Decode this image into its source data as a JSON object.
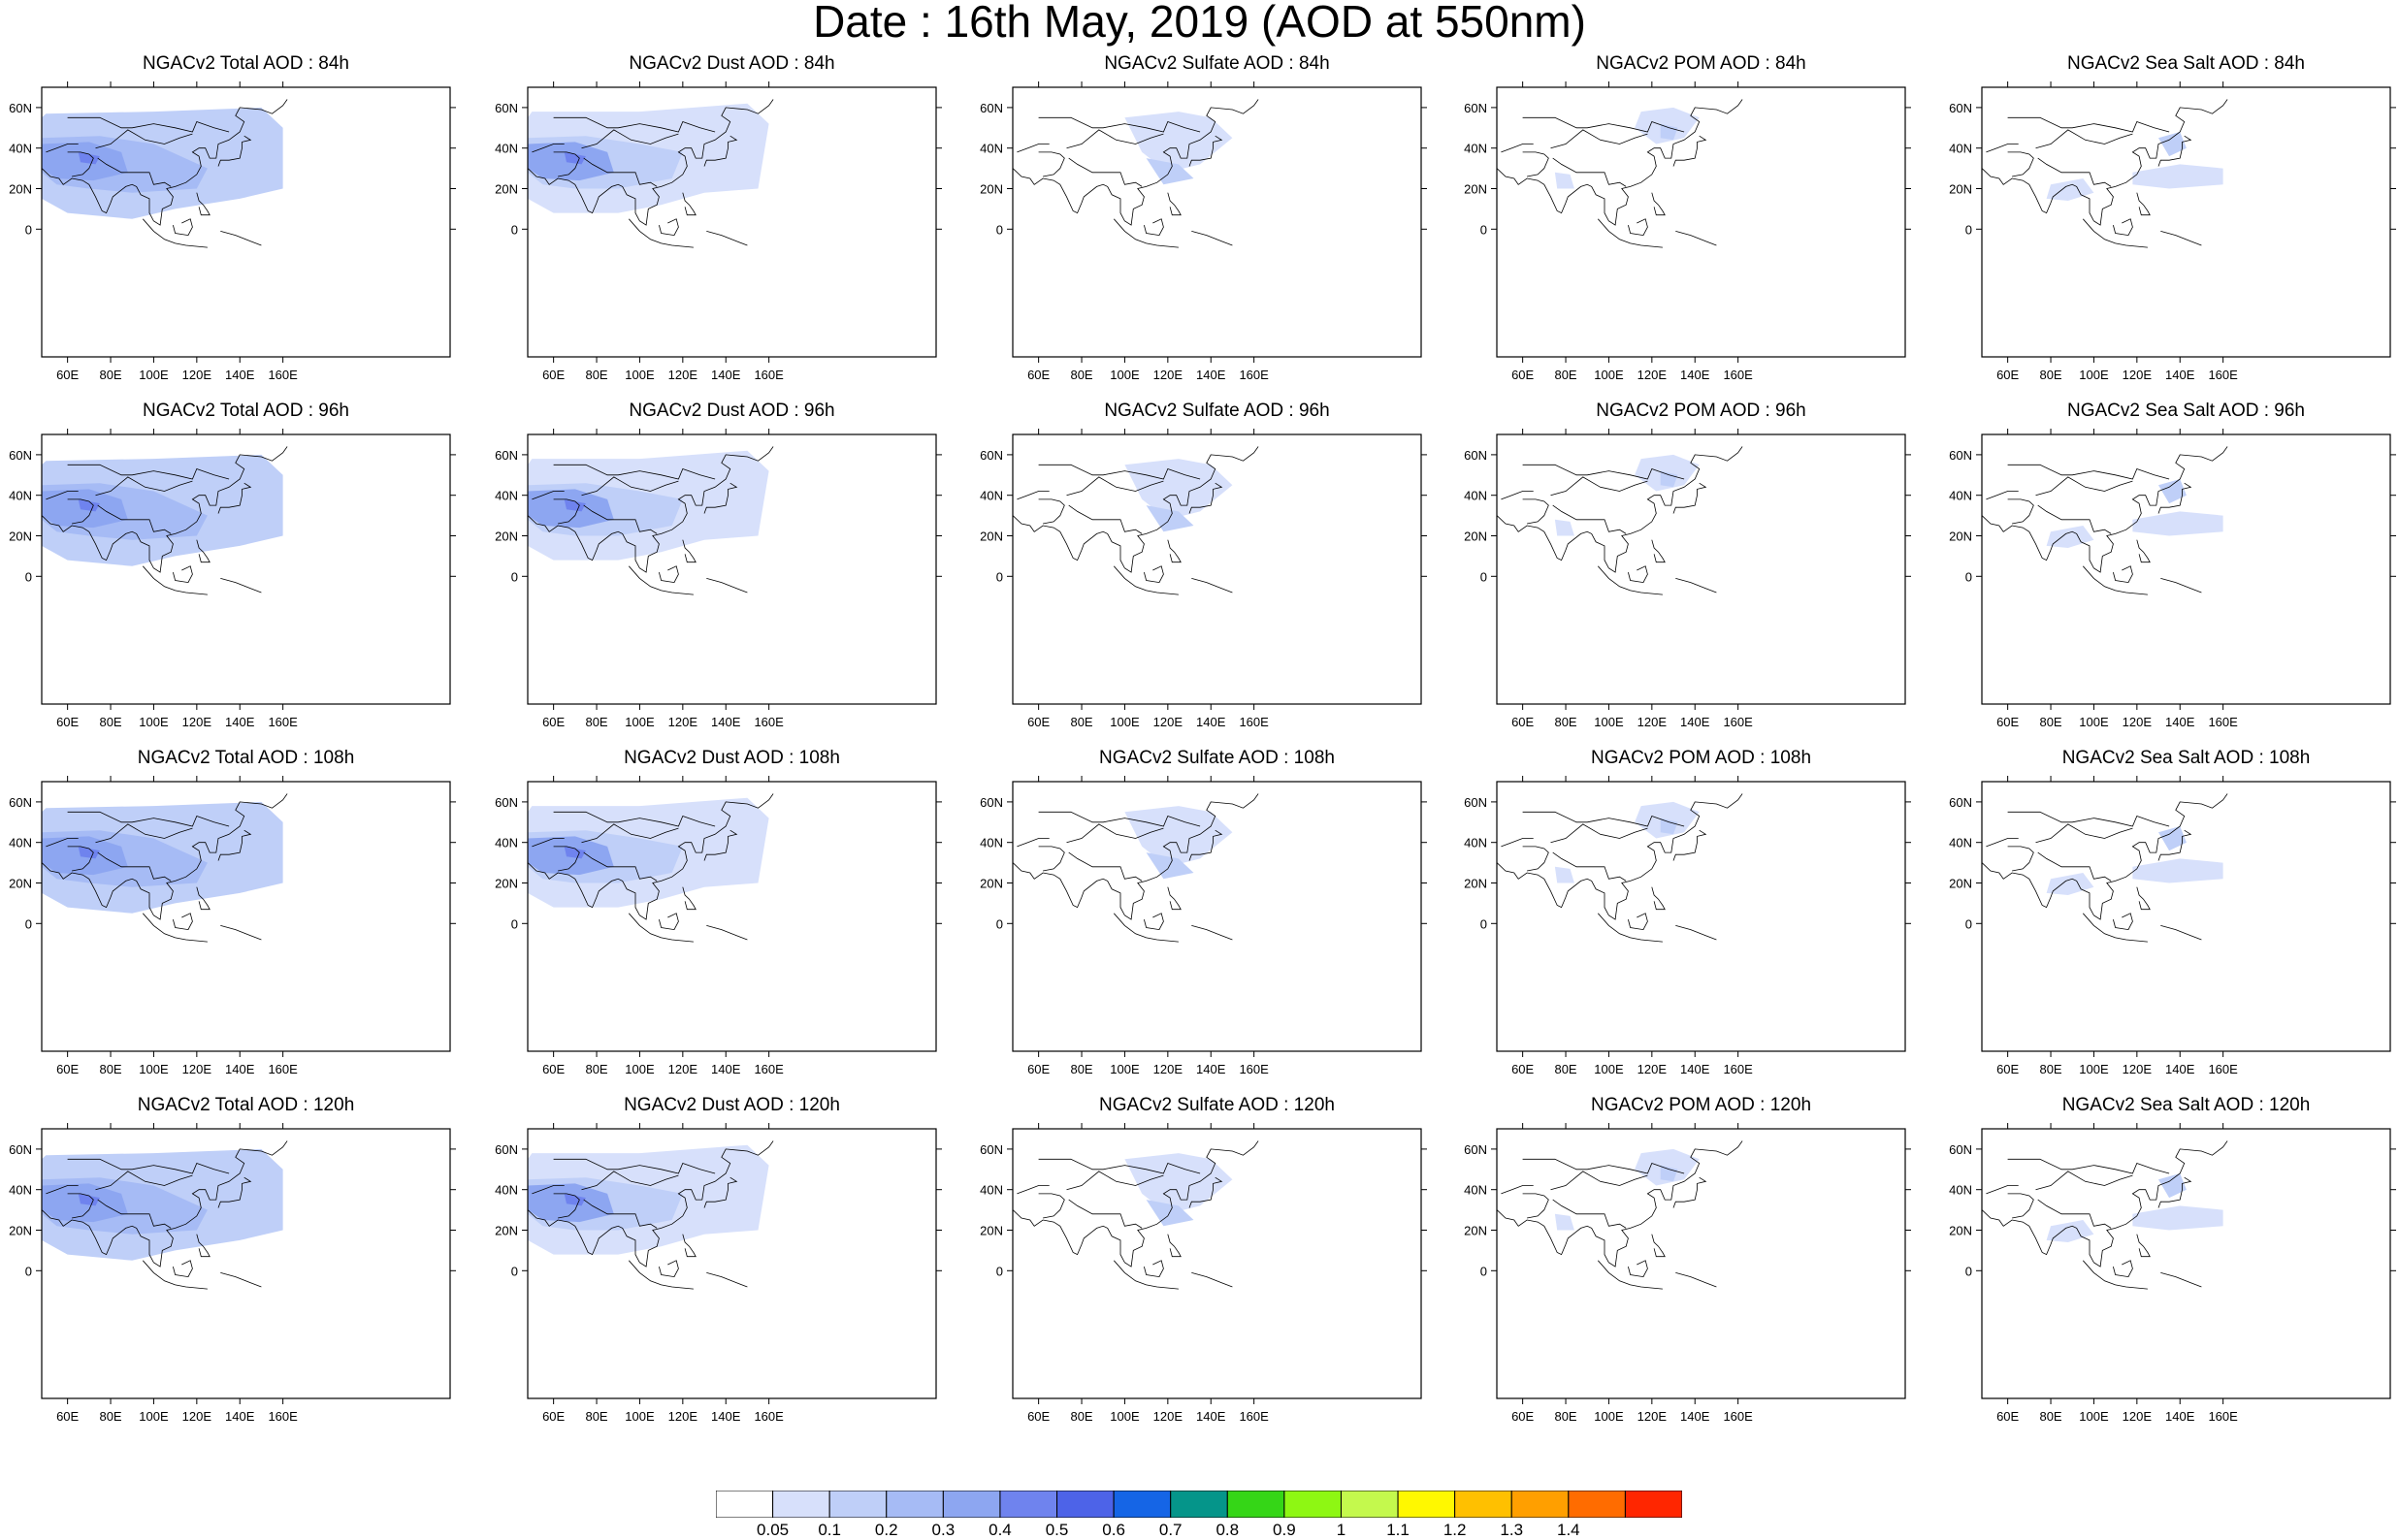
{
  "title": "Date : 16th May, 2019 (AOD at 550nm)",
  "lat_labels": [
    "60N",
    "40N",
    "20N",
    "0"
  ],
  "lon_labels": [
    "60E",
    "80E",
    "100E",
    "120E",
    "140E",
    "160E"
  ],
  "rows": [
    {
      "panels": [
        {
          "title": "NGACv2 Total AOD : 84h",
          "type": "total"
        },
        {
          "title": "NGACv2 Dust AOD : 84h",
          "type": "dust"
        },
        {
          "title": "NGACv2 Sulfate AOD : 84h",
          "type": "sulfate"
        },
        {
          "title": "NGACv2 POM AOD : 84h",
          "type": "pom"
        },
        {
          "title": "NGACv2 Sea Salt AOD : 84h",
          "type": "seasalt"
        }
      ]
    },
    {
      "panels": [
        {
          "title": "NGACv2 Total AOD : 96h",
          "type": "total"
        },
        {
          "title": "NGACv2 Dust AOD : 96h",
          "type": "dust"
        },
        {
          "title": "NGACv2 Sulfate AOD : 96h",
          "type": "sulfate"
        },
        {
          "title": "NGACv2 POM AOD : 96h",
          "type": "pom"
        },
        {
          "title": "NGACv2 Sea Salt AOD : 96h",
          "type": "seasalt"
        }
      ]
    },
    {
      "panels": [
        {
          "title": "NGACv2 Total AOD : 108h",
          "type": "total"
        },
        {
          "title": "NGACv2 Dust AOD : 108h",
          "type": "dust"
        },
        {
          "title": "NGACv2 Sulfate AOD : 108h",
          "type": "sulfate"
        },
        {
          "title": "NGACv2 POM AOD : 108h",
          "type": "pom"
        },
        {
          "title": "NGACv2 Sea Salt AOD : 108h",
          "type": "seasalt"
        }
      ]
    },
    {
      "panels": [
        {
          "title": "NGACv2 Total AOD : 120h",
          "type": "total"
        },
        {
          "title": "NGACv2 Dust AOD : 120h",
          "type": "dust"
        },
        {
          "title": "NGACv2 Sulfate AOD : 120h",
          "type": "sulfate"
        },
        {
          "title": "NGACv2 POM AOD : 120h",
          "type": "pom"
        },
        {
          "title": "NGACv2 Sea Salt  AOD : 120h",
          "type": "seasalt"
        }
      ]
    }
  ],
  "colorbar": {
    "labels": [
      "0.05",
      "0.1",
      "0.2",
      "0.3",
      "0.4",
      "0.5",
      "0.6",
      "0.7",
      "0.8",
      "0.9",
      "1",
      "1.1",
      "1.2",
      "1.3",
      "1.4"
    ],
    "colors": [
      "#ffffff",
      "#d7e0fb",
      "#bfcff8",
      "#a6bbf5",
      "#8da6f1",
      "#6f83ee",
      "#4d63e8",
      "#1565e6",
      "#05958a",
      "#35d617",
      "#8ef713",
      "#c4f94d",
      "#fff800",
      "#ffc000",
      "#ff9f00",
      "#ff6c00",
      "#ff2600"
    ]
  }
}
